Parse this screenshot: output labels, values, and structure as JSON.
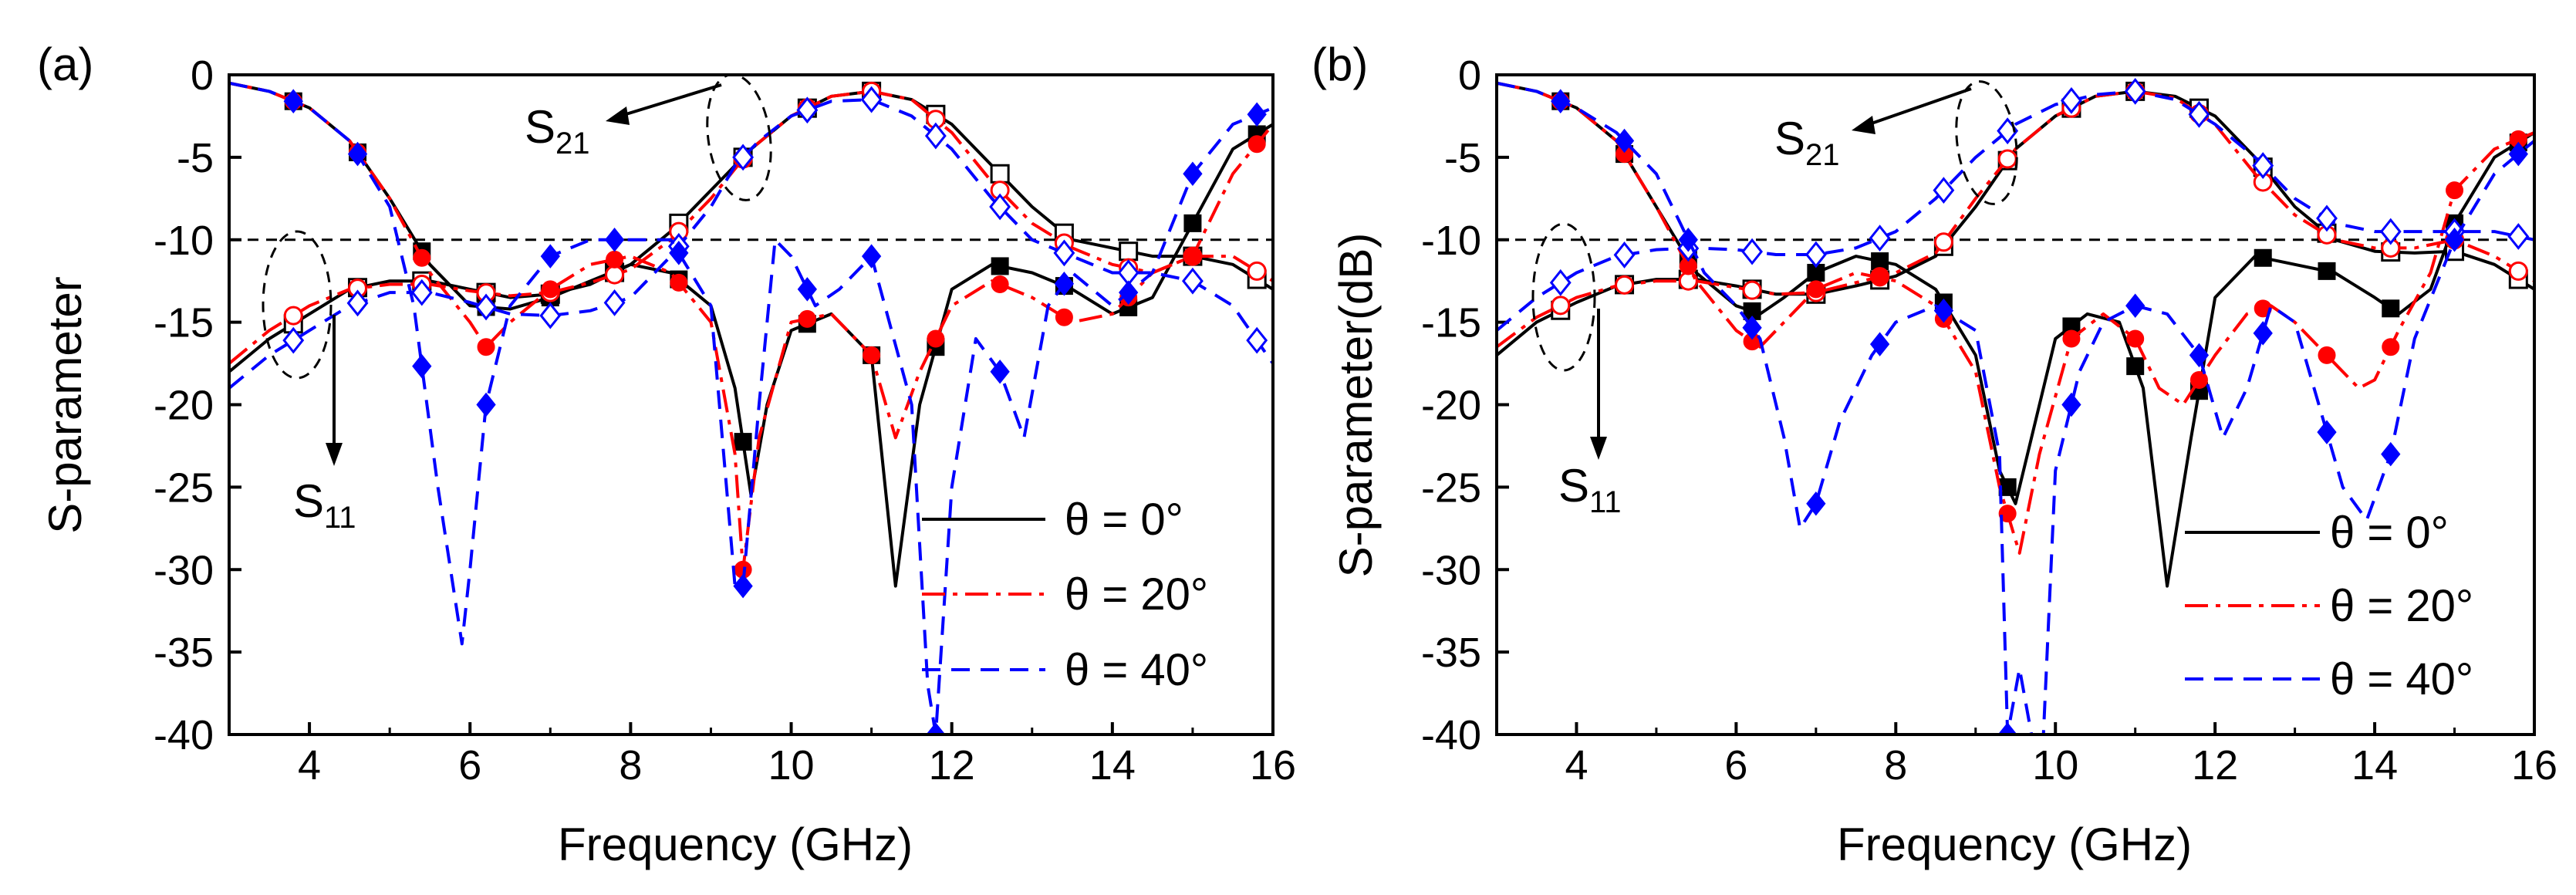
{
  "chart_data": [
    {
      "type": "line",
      "panel_label": "(a)",
      "xlabel": "Frequency (GHz)",
      "ylabel": "S-parameter",
      "xlim": [
        3,
        16
      ],
      "ylim": [
        -40,
        0
      ],
      "xticks": [
        4,
        6,
        8,
        10,
        12,
        14,
        16
      ],
      "yticks": [
        0,
        -5,
        -10,
        -15,
        -20,
        -25,
        -30,
        -35,
        -40
      ],
      "reference_line": -10,
      "annotations": [
        {
          "main": "S",
          "sub": "21"
        },
        {
          "main": "S",
          "sub": "11"
        }
      ],
      "legend": [
        "θ =  0°",
        "θ = 20°",
        "θ = 40°"
      ],
      "series": [
        {
          "name": "S21, θ = 0°",
          "color": "#000000",
          "style": "solid",
          "marker": "square-open",
          "x": [
            3.0,
            3.5,
            4.0,
            4.5,
            5.0,
            5.5,
            6.0,
            6.5,
            7.0,
            7.5,
            8.0,
            8.5,
            9.0,
            9.5,
            10.0,
            10.5,
            11.0,
            11.5,
            12.0,
            12.5,
            13.0,
            13.5,
            14.0,
            14.5,
            15.0,
            15.5,
            16.0
          ],
          "y": [
            -18,
            -16,
            -14.5,
            -13,
            -12.5,
            -12.5,
            -13,
            -13.5,
            -13.3,
            -12.7,
            -11.5,
            -9.5,
            -7,
            -4.5,
            -2.5,
            -1.3,
            -1,
            -1.5,
            -3,
            -5.5,
            -8,
            -10,
            -10.5,
            -11,
            -11,
            -11.5,
            -13
          ]
        },
        {
          "name": "S11, θ = 0°",
          "color": "#000000",
          "style": "solid",
          "marker": "square",
          "x": [
            3.0,
            3.5,
            4.0,
            4.5,
            5.0,
            5.5,
            6.0,
            6.5,
            7.0,
            7.5,
            8.0,
            8.5,
            9.0,
            9.3,
            9.5,
            9.7,
            10.0,
            10.5,
            11.0,
            11.3,
            11.6,
            12.0,
            12.5,
            13.0,
            13.5,
            14.0,
            14.5,
            15.0,
            15.5,
            16.0
          ],
          "y": [
            -0.5,
            -1,
            -2,
            -4,
            -7.5,
            -11.5,
            -14,
            -14.2,
            -13.5,
            -12.5,
            -11.5,
            -12,
            -14,
            -19,
            -25.5,
            -20,
            -15.5,
            -14.5,
            -17,
            -31,
            -20,
            -13,
            -11.5,
            -12,
            -13,
            -14.5,
            -13.5,
            -9,
            -4.5,
            -3
          ]
        },
        {
          "name": "S21, θ = 20°",
          "color": "#ff0000",
          "style": "dashdot",
          "marker": "circle-open",
          "x": [
            3.0,
            3.5,
            4.0,
            4.5,
            5.0,
            5.5,
            6.0,
            6.5,
            7.0,
            7.5,
            8.0,
            8.5,
            9.0,
            9.5,
            10.0,
            10.5,
            11.0,
            11.5,
            12.0,
            12.5,
            13.0,
            13.5,
            14.0,
            14.5,
            15.0,
            15.5,
            16.0
          ],
          "y": [
            -17.5,
            -15.5,
            -14,
            -13,
            -12.7,
            -12.7,
            -13.1,
            -13.4,
            -13.2,
            -12.6,
            -11.8,
            -10,
            -7.5,
            -4.5,
            -2.5,
            -1.3,
            -1,
            -1.5,
            -3.5,
            -6.5,
            -9,
            -10.5,
            -11.5,
            -12,
            -11,
            -11,
            -12.5
          ]
        },
        {
          "name": "S11, θ = 20°",
          "color": "#ff0000",
          "style": "dashdot",
          "marker": "circle",
          "x": [
            3.0,
            3.5,
            4.0,
            4.5,
            5.0,
            5.5,
            6.0,
            6.2,
            6.5,
            7.0,
            7.5,
            8.0,
            8.5,
            9.0,
            9.3,
            9.4,
            9.6,
            10.0,
            10.5,
            11.0,
            11.3,
            11.6,
            12.0,
            12.5,
            13.0,
            13.5,
            14.0,
            14.5,
            15.0,
            15.5,
            16.0
          ],
          "y": [
            -0.5,
            -1,
            -2,
            -4,
            -7.5,
            -12,
            -15,
            -16.5,
            -15,
            -13,
            -11.5,
            -11,
            -12,
            -15,
            -23,
            -30,
            -22,
            -15,
            -14.5,
            -17,
            -22,
            -18,
            -14,
            -12.5,
            -13.5,
            -15,
            -14.5,
            -12,
            -11,
            -6,
            -3
          ]
        },
        {
          "name": "S21, θ = 40°",
          "color": "#0000ff",
          "style": "dashed",
          "marker": "diamond-open",
          "x": [
            3.0,
            3.5,
            4.0,
            4.5,
            5.0,
            5.5,
            6.0,
            6.5,
            7.0,
            7.5,
            8.0,
            8.5,
            9.0,
            9.3,
            9.6,
            10.0,
            10.5,
            11.0,
            11.5,
            12.0,
            12.5,
            13.0,
            13.5,
            14.0,
            14.5,
            15.0,
            15.5,
            16.0
          ],
          "y": [
            -19,
            -17,
            -15.5,
            -14,
            -13.2,
            -13.2,
            -13.8,
            -14.5,
            -14.6,
            -14.3,
            -13.5,
            -11,
            -8,
            -5.5,
            -4,
            -2.5,
            -1.6,
            -1.5,
            -2.5,
            -4.5,
            -7.5,
            -10,
            -11,
            -12,
            -12,
            -12.5,
            -14,
            -17.5
          ]
        },
        {
          "name": "S11, θ = 40°",
          "color": "#0000ff",
          "style": "dashed",
          "marker": "diamond",
          "x": [
            3.0,
            3.5,
            4.0,
            4.5,
            5.0,
            5.3,
            5.6,
            5.9,
            6.0,
            6.2,
            6.5,
            7.0,
            7.5,
            8.0,
            8.5,
            9.0,
            9.3,
            9.4,
            9.6,
            9.8,
            10.0,
            10.3,
            10.6,
            11.0,
            11.5,
            11.7,
            11.8,
            12.0,
            12.3,
            12.6,
            12.9,
            13.2,
            13.5,
            14.0,
            14.5,
            15.0,
            15.5,
            16.0
          ],
          "y": [
            -0.5,
            -1,
            -2,
            -4,
            -8,
            -14,
            -25,
            -34.5,
            -30,
            -20,
            -14,
            -11,
            -10,
            -10,
            -10,
            -14,
            -31,
            -31,
            -20,
            -10,
            -11,
            -14,
            -13,
            -11,
            -20,
            -37,
            -40,
            -25,
            -16,
            -18,
            -22,
            -14,
            -12,
            -14,
            -12,
            -6,
            -3,
            -2
          ]
        }
      ]
    },
    {
      "type": "line",
      "panel_label": "(b)",
      "xlabel": "Frequency (GHz)",
      "ylabel": "S-parameter(dB)",
      "xlim": [
        3,
        16
      ],
      "ylim": [
        -40,
        0
      ],
      "xticks": [
        4,
        6,
        8,
        10,
        12,
        14,
        16
      ],
      "yticks": [
        0,
        -5,
        -10,
        -15,
        -20,
        -25,
        -30,
        -35,
        -40
      ],
      "reference_line": -10,
      "annotations": [
        {
          "main": "S",
          "sub": "21"
        },
        {
          "main": "S",
          "sub": "11"
        }
      ],
      "legend": [
        "θ =  0°",
        "θ = 20°",
        "θ = 40°"
      ],
      "series": [
        {
          "name": "S21, θ = 0°",
          "color": "#000000",
          "style": "solid",
          "marker": "square-open",
          "x": [
            3.0,
            3.5,
            4.0,
            4.5,
            5.0,
            5.5,
            6.0,
            6.5,
            7.0,
            7.5,
            8.0,
            8.5,
            9.0,
            9.5,
            10.0,
            10.5,
            11.0,
            11.5,
            12.0,
            12.5,
            13.0,
            13.5,
            14.0,
            14.5,
            15.0,
            15.5,
            16.0
          ],
          "y": [
            -17,
            -15,
            -13.8,
            -12.8,
            -12.4,
            -12.4,
            -12.8,
            -13.3,
            -13.3,
            -12.8,
            -12.2,
            -11,
            -8,
            -4.5,
            -2.5,
            -1.3,
            -1,
            -1.3,
            -2.5,
            -5,
            -8,
            -10,
            -10.7,
            -10.8,
            -10.7,
            -11.5,
            -13
          ]
        },
        {
          "name": "S11, θ = 0°",
          "color": "#000000",
          "style": "solid",
          "marker": "square",
          "x": [
            3.0,
            3.5,
            4.0,
            4.5,
            5.0,
            5.5,
            6.0,
            6.3,
            6.6,
            7.0,
            7.5,
            8.0,
            8.5,
            9.0,
            9.3,
            9.5,
            9.7,
            10.0,
            10.4,
            10.8,
            11.1,
            11.4,
            11.7,
            12.0,
            12.5,
            13.0,
            13.5,
            14.0,
            14.3,
            14.7,
            15.0,
            15.5,
            16.0
          ],
          "y": [
            -0.5,
            -1,
            -2,
            -4,
            -8,
            -12,
            -14,
            -14.5,
            -13.5,
            -12,
            -11,
            -11.5,
            -13,
            -17,
            -24,
            -26,
            -22,
            -16,
            -14.5,
            -15,
            -19,
            -31,
            -22,
            -13.5,
            -11,
            -11.5,
            -12,
            -13.5,
            -14.5,
            -13,
            -9,
            -5,
            -3.5
          ]
        },
        {
          "name": "S21, θ = 20°",
          "color": "#ff0000",
          "style": "dashdot",
          "marker": "circle-open",
          "x": [
            3.0,
            3.5,
            4.0,
            4.5,
            5.0,
            5.5,
            6.0,
            6.5,
            7.0,
            7.5,
            8.0,
            8.5,
            9.0,
            9.5,
            10.0,
            10.5,
            11.0,
            11.5,
            12.0,
            12.5,
            13.0,
            13.5,
            14.0,
            14.5,
            15.0,
            15.5,
            16.0
          ],
          "y": [
            -16.5,
            -14.7,
            -13.5,
            -12.8,
            -12.5,
            -12.5,
            -12.9,
            -13.3,
            -13.2,
            -12.6,
            -12,
            -10.8,
            -7.5,
            -4.5,
            -2.5,
            -1.3,
            -1,
            -1.4,
            -3,
            -6,
            -8.5,
            -10,
            -10.5,
            -10.5,
            -10,
            -11,
            -12.5
          ]
        },
        {
          "name": "S11, θ = 20°",
          "color": "#ff0000",
          "style": "dashdot",
          "marker": "circle",
          "x": [
            3.0,
            3.5,
            4.0,
            4.5,
            5.0,
            5.5,
            6.0,
            6.3,
            6.6,
            7.0,
            7.5,
            8.0,
            8.5,
            9.0,
            9.3,
            9.55,
            9.8,
            10.2,
            10.6,
            11.0,
            11.3,
            11.6,
            12.0,
            12.4,
            12.7,
            13.0,
            13.4,
            13.8,
            14.0,
            14.3,
            14.7,
            15.0,
            15.5,
            16.0
          ],
          "y": [
            -0.5,
            -1,
            -2,
            -4,
            -8,
            -12.5,
            -15.5,
            -16.5,
            -15,
            -13,
            -12,
            -12.5,
            -14,
            -18,
            -25,
            -29,
            -23,
            -16,
            -14.5,
            -16,
            -19,
            -20,
            -17,
            -14.5,
            -14,
            -15,
            -17,
            -19,
            -18.5,
            -15.5,
            -12,
            -7,
            -4.5,
            -3.5
          ]
        },
        {
          "name": "S21, θ = 40°",
          "color": "#0000ff",
          "style": "dashed",
          "marker": "diamond-open",
          "x": [
            3.0,
            3.5,
            4.0,
            4.5,
            5.0,
            5.5,
            6.0,
            6.5,
            7.0,
            7.5,
            8.0,
            8.5,
            9.0,
            9.5,
            10.0,
            10.5,
            11.0,
            11.5,
            12.0,
            12.5,
            13.0,
            13.5,
            14.0,
            14.5,
            15.0,
            15.5,
            16.0
          ],
          "y": [
            -15.5,
            -13.5,
            -12,
            -11,
            -10.6,
            -10.5,
            -10.6,
            -10.9,
            -10.9,
            -10.5,
            -9.5,
            -7.5,
            -5,
            -3,
            -1.8,
            -1.2,
            -1,
            -1.5,
            -3,
            -5,
            -7.5,
            -9,
            -9.5,
            -9.5,
            -9.5,
            -9.5,
            -10
          ]
        },
        {
          "name": "S11, θ = 40°",
          "color": "#0000ff",
          "style": "dashed",
          "marker": "diamond",
          "x": [
            3.0,
            3.5,
            4.0,
            4.5,
            5.0,
            5.3,
            5.6,
            6.0,
            6.3,
            6.6,
            6.8,
            7.0,
            7.3,
            7.7,
            8.0,
            8.5,
            9.0,
            9.3,
            9.4,
            9.55,
            9.7,
            9.85,
            10.0,
            10.3,
            10.6,
            11.0,
            11.4,
            11.8,
            12.1,
            12.4,
            12.7,
            13.0,
            13.3,
            13.6,
            13.9,
            14.2,
            14.5,
            15.0,
            15.5,
            16.0
          ],
          "y": [
            -0.5,
            -1,
            -2,
            -3.5,
            -6,
            -9,
            -12,
            -14,
            -16,
            -22,
            -27.5,
            -26,
            -21,
            -17,
            -15,
            -14,
            -15.5,
            -23,
            -40,
            -36,
            -40,
            -40,
            -24,
            -18,
            -15,
            -14,
            -14.5,
            -17,
            -22,
            -19,
            -14,
            -15,
            -20,
            -25,
            -27,
            -23,
            -16,
            -10,
            -6,
            -4
          ]
        }
      ]
    }
  ]
}
